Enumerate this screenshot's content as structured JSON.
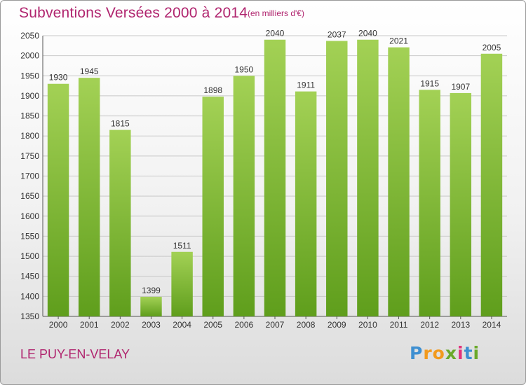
{
  "header": {
    "title": "Subventions Versées 2000 à 2014",
    "unit": "(en milliers d'€)"
  },
  "footer": {
    "place": "LE PUY-EN-VELAY",
    "brand": "Proxiti",
    "brand_letters": [
      "P",
      "r",
      "o",
      "x",
      "i",
      "t",
      "i"
    ]
  },
  "colors": {
    "text_accent": "#b0246e",
    "bar_light": "#a3d155",
    "bar_dark": "#5f9e1c",
    "grid": "#c8c8c8"
  },
  "chart_data": {
    "type": "bar",
    "title": "Subventions Versées 2000 à 2014",
    "subtitle": "(en milliers d'€)",
    "categories": [
      "2000",
      "2001",
      "2002",
      "2003",
      "2004",
      "2005",
      "2006",
      "2007",
      "2008",
      "2009",
      "2010",
      "2011",
      "2012",
      "2013",
      "2014"
    ],
    "values": [
      1930,
      1945,
      1815,
      1399,
      1511,
      1898,
      1950,
      2040,
      1911,
      2037,
      2040,
      2021,
      1915,
      1907,
      2005
    ],
    "ylim": [
      1350,
      2050
    ],
    "yticks": [
      1350,
      1400,
      1450,
      1500,
      1550,
      1600,
      1650,
      1700,
      1750,
      1800,
      1850,
      1900,
      1950,
      2000,
      2050
    ],
    "grid": true,
    "legend": "none"
  }
}
